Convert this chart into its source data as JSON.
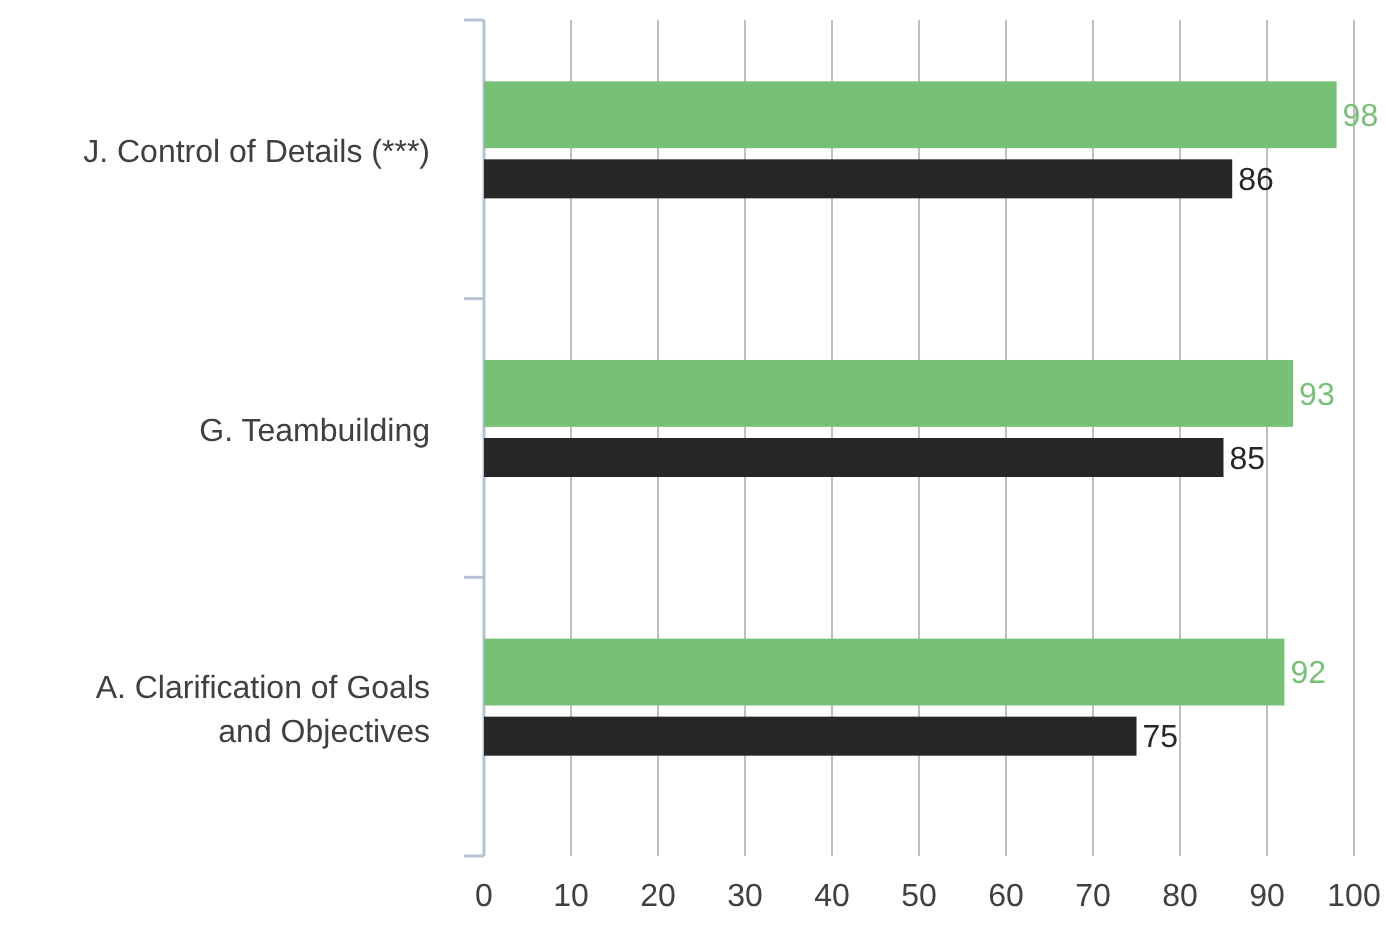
{
  "chart_data": {
    "type": "bar",
    "orientation": "horizontal",
    "categories": [
      "J. Control of Details (***)",
      "G. Teambuilding",
      "A. Clarification of Goals and Objectives"
    ],
    "series": [
      {
        "color": "#77c177",
        "values": [
          98,
          93,
          92
        ]
      },
      {
        "color": "#262626",
        "values": [
          86,
          85,
          75
        ]
      }
    ],
    "xlim": [
      0,
      100
    ],
    "xticks": [
      0,
      10,
      20,
      30,
      40,
      50,
      60,
      70,
      80,
      90,
      100
    ],
    "grid": "x",
    "data_labels": true
  }
}
